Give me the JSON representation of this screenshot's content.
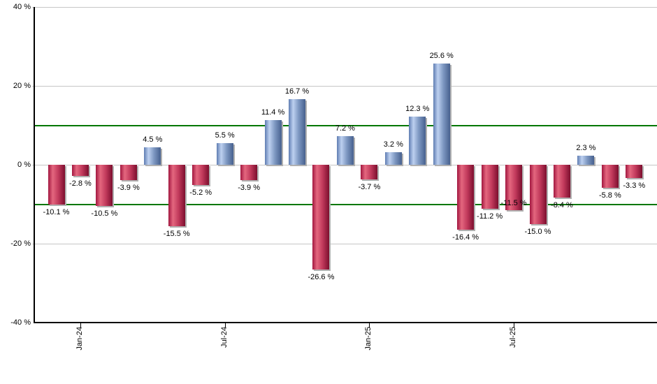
{
  "chart_data": {
    "type": "bar",
    "title": "",
    "unit": "%",
    "ylim": [
      -40,
      40
    ],
    "grid": true,
    "legend": false,
    "y_ticks": [
      {
        "value": 40,
        "label": "40 %"
      },
      {
        "value": 20,
        "label": "20 %"
      },
      {
        "value": 0,
        "label": "0 %"
      },
      {
        "value": -20,
        "label": "-20 %"
      },
      {
        "value": -40,
        "label": "-40 %"
      }
    ],
    "x_ticks": [
      {
        "bar_index": 1,
        "label": "Jan-24"
      },
      {
        "bar_index": 7,
        "label": "Jul-24"
      },
      {
        "bar_index": 13,
        "label": "Jan-25"
      },
      {
        "bar_index": 19,
        "label": "Jul-25"
      }
    ],
    "reference_lines": [
      {
        "value": 10
      },
      {
        "value": -10
      }
    ],
    "bars": [
      {
        "value": -10.1,
        "label": "-10.1 %"
      },
      {
        "value": -2.8,
        "label": "-2.8 %"
      },
      {
        "value": -10.5,
        "label": "-10.5 %"
      },
      {
        "value": -3.9,
        "label": "-3.9 %"
      },
      {
        "value": 4.5,
        "label": "4.5 %"
      },
      {
        "value": -15.5,
        "label": "-15.5 %"
      },
      {
        "value": -5.2,
        "label": "-5.2 %"
      },
      {
        "value": 5.5,
        "label": "5.5 %"
      },
      {
        "value": -3.9,
        "label": "-3.9 %"
      },
      {
        "value": 11.4,
        "label": "11.4 %"
      },
      {
        "value": 16.7,
        "label": "16.7 %"
      },
      {
        "value": -26.6,
        "label": "-26.6 %"
      },
      {
        "value": 7.2,
        "label": "7.2 %"
      },
      {
        "value": -3.7,
        "label": "-3.7 %"
      },
      {
        "value": 3.2,
        "label": "3.2 %"
      },
      {
        "value": 12.3,
        "label": "12.3 %"
      },
      {
        "value": 25.6,
        "label": "25.6 %"
      },
      {
        "value": -16.4,
        "label": "-16.4 %"
      },
      {
        "value": -11.2,
        "label": "-11.2 %"
      },
      {
        "value": -11.5,
        "label": "-11.5 %"
      },
      {
        "value": -15.0,
        "label": "-15.0 %"
      },
      {
        "value": -8.4,
        "label": "-8.4 %"
      },
      {
        "value": 2.3,
        "label": "2.3 %"
      },
      {
        "value": -5.8,
        "label": "-5.8 %"
      },
      {
        "value": -3.3,
        "label": "-3.3 %"
      }
    ],
    "colors": {
      "positive_edge_left": "#5f7db2",
      "positive_highlight": "#bdd0f0",
      "positive_mid": "#7d97c1",
      "positive_edge_right": "#46608e",
      "negative_edge_left": "#a21740",
      "negative_highlight": "#e4677f",
      "negative_mid": "#c23a5c",
      "negative_edge_right": "#7c0e2e",
      "reference_line": "#007700",
      "gridline": "#c6c6c6",
      "axis": "#000000",
      "label_text": "#000000",
      "shadow": "#b0b0b0"
    }
  }
}
